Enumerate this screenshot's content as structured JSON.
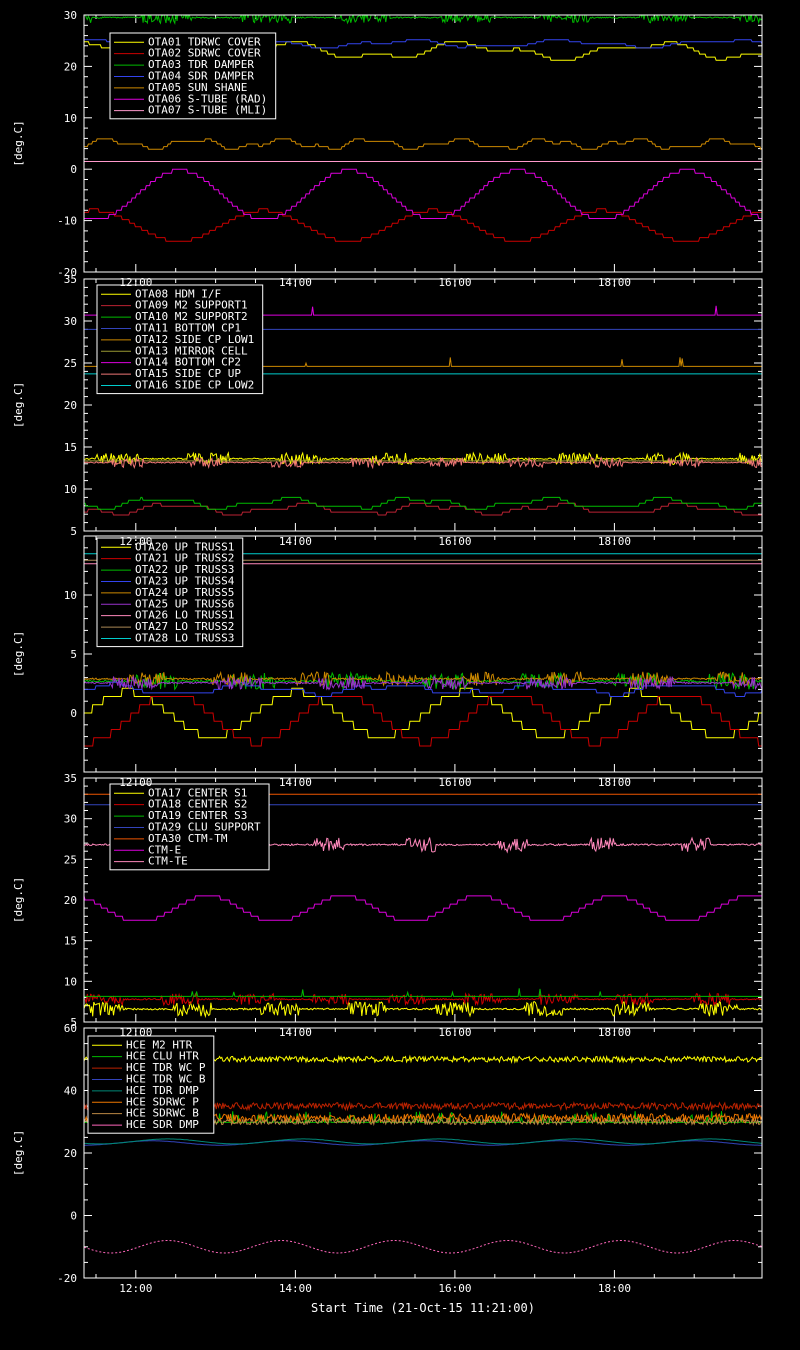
{
  "chart_data": {
    "type": "line",
    "title": "",
    "xlabel": "Start Time (21-Oct-15 11:21:00)",
    "ylabel": "[deg.C]",
    "background": "#000000",
    "foreground": "#ffffff",
    "grid": false,
    "legend_position": "top-left-inside-each-panel",
    "x_range_hours": [
      11.35,
      19.85
    ],
    "x_minor_interval_hours": 0.5,
    "x_ticks": [
      {
        "hour": 12,
        "label": "12:00"
      },
      {
        "hour": 14,
        "label": "14:00"
      },
      {
        "hour": 16,
        "label": "16:00"
      },
      {
        "hour": 18,
        "label": "18:00"
      }
    ],
    "panels": [
      {
        "ylim": [
          -20,
          30
        ],
        "yticks": [
          -20,
          -10,
          0,
          10,
          20,
          30
        ],
        "yminor": 2,
        "series": [
          {
            "label": "OTA01 TDRWC COVER",
            "color": "#ffff00",
            "pattern": "steps",
            "base": 23.0,
            "amp": 1.3,
            "period": 2.3,
            "quant": 0.6,
            "seed": 11
          },
          {
            "label": "OTA02 SDRWC COVER",
            "color": "#cc0000",
            "pattern": "stairsine",
            "base": -11.0,
            "amp": 3.0,
            "period": 2.12,
            "quant": 0.7,
            "tpeak": 13.6,
            "seed": 12
          },
          {
            "label": "OTA03 TDR DAMPER",
            "color": "#00bb00",
            "pattern": "burstnoise",
            "base": 29.5,
            "amp": 1.1,
            "gper": 1.25,
            "gth": 0.0,
            "seed": 13
          },
          {
            "label": "OTA04 SDR DAMPER",
            "color": "#3344ee",
            "pattern": "steps",
            "base": 24.4,
            "amp": 0.6,
            "period": 2.0,
            "quant": 0.4,
            "seed": 14
          },
          {
            "label": "OTA05 SUN SHANE",
            "color": "#cc8800",
            "pattern": "steps",
            "base": 4.9,
            "amp": 0.8,
            "period": 1.1,
            "quant": 0.5,
            "seed": 15
          },
          {
            "label": "OTA06 S-TUBE (RAD)",
            "color": "#dd00dd",
            "pattern": "stairsine",
            "base": -5.0,
            "amp": 4.8,
            "period": 2.12,
            "quant": 0.8,
            "tpeak": 12.55,
            "seed": 16
          },
          {
            "label": "OTA07 S-TUBE (MLI)",
            "color": "#ff99cc",
            "pattern": "flat",
            "base": 1.5,
            "seed": 17
          }
        ]
      },
      {
        "ylim": [
          5,
          35
        ],
        "yticks": [
          5,
          10,
          15,
          20,
          25,
          30,
          35
        ],
        "yminor": 1,
        "series": [
          {
            "label": "OTA08 HDM I/F",
            "color": "#ffff00",
            "pattern": "burstnoise",
            "base": 13.6,
            "amp": 0.7,
            "gper": 1.15,
            "gth": 0.1,
            "seed": 21
          },
          {
            "label": "OTA09 M2 SUPPORT1",
            "color": "#bb2233",
            "pattern": "steps",
            "base": 7.6,
            "amp": 0.5,
            "period": 1.6,
            "quant": 0.35,
            "seed": 22
          },
          {
            "label": "OTA10 M2 SUPPORT2",
            "color": "#00bb00",
            "pattern": "steps",
            "base": 8.3,
            "amp": 0.5,
            "period": 1.6,
            "quant": 0.35,
            "seed": 23
          },
          {
            "label": "OTA11 BOTTOM CP1",
            "color": "#3344bb",
            "pattern": "flat",
            "base": 29.0,
            "seed": 24
          },
          {
            "label": "OTA12 SIDE CP LOW1",
            "color": "#cc8800",
            "pattern": "spikes",
            "base": 24.6,
            "amp": 0.9,
            "p": 0.015,
            "seed": 25
          },
          {
            "label": "OTA13 MIRROR CELL",
            "color": "#999933",
            "pattern": "flat",
            "base": 13.35,
            "seed": 26
          },
          {
            "label": "OTA14 BOTTOM CP2",
            "color": "#dd00dd",
            "pattern": "spikes",
            "base": 30.7,
            "amp": 1.0,
            "p": 0.007,
            "seed": 27
          },
          {
            "label": "OTA15 SIDE CP UP",
            "color": "#ee7777",
            "pattern": "burstnoise",
            "base": 13.15,
            "amp": 0.6,
            "gper": 1.0,
            "gth": 0.25,
            "seed": 28
          },
          {
            "label": "OTA16 SIDE CP LOW2",
            "color": "#00cccc",
            "pattern": "flat",
            "base": 23.7,
            "seed": 29
          }
        ]
      },
      {
        "ylim": [
          -5,
          15
        ],
        "yticks": [
          0,
          5,
          10
        ],
        "yminor": 1,
        "series": [
          {
            "label": "OTA20 UP TRUSS1",
            "color": "#ffff00",
            "pattern": "stairsine",
            "base": -0.1,
            "amp": 1.9,
            "period": 2.12,
            "quant": 0.7,
            "tpeak": 11.9,
            "seed": 31
          },
          {
            "label": "OTA21 UP TRUSS2",
            "color": "#cc0000",
            "pattern": "stairsine",
            "base": -0.4,
            "amp": 2.1,
            "period": 2.12,
            "quant": 0.7,
            "tpeak": 12.45,
            "seed": 32
          },
          {
            "label": "OTA22 UP TRUSS3",
            "color": "#00bb00",
            "pattern": "burstnoise",
            "base": 2.7,
            "amp": 0.7,
            "gper": 1.2,
            "gth": 0.1,
            "seed": 33
          },
          {
            "label": "OTA23 UP TRUSS4",
            "color": "#3344ee",
            "pattern": "steps",
            "base": 2.0,
            "amp": 0.35,
            "period": 1.8,
            "quant": 0.3,
            "seed": 34
          },
          {
            "label": "OTA24 UP TRUSS5",
            "color": "#cc8800",
            "pattern": "burstnoise",
            "base": 2.9,
            "amp": 0.6,
            "gper": 1.05,
            "gth": 0.2,
            "seed": 35
          },
          {
            "label": "OTA25 UP TRUSS6",
            "color": "#9933cc",
            "pattern": "burstnoise",
            "base": 2.55,
            "amp": 0.55,
            "gper": 1.3,
            "gth": 0.15,
            "seed": 36
          },
          {
            "label": "OTA26 LO TRUSS1",
            "color": "#ff88bb",
            "pattern": "flat",
            "base": 12.65,
            "seed": 37
          },
          {
            "label": "OTA27 LO TRUSS2",
            "color": "#aa8855",
            "pattern": "flat",
            "base": 12.95,
            "seed": 38
          },
          {
            "label": "OTA28 LO TRUSS3",
            "color": "#00cccc",
            "pattern": "flat",
            "base": 13.5,
            "seed": 39
          }
        ]
      },
      {
        "ylim": [
          5,
          35
        ],
        "yticks": [
          5,
          10,
          15,
          20,
          25,
          30,
          35
        ],
        "yminor": 1,
        "series": [
          {
            "label": "OTA17 CENTER S1",
            "color": "#ffff00",
            "pattern": "burstnoise",
            "base": 6.6,
            "amp": 0.9,
            "gper": 1.1,
            "gth": 0.2,
            "seed": 41
          },
          {
            "label": "OTA18 CENTER S2",
            "color": "#cc0000",
            "pattern": "burstnoise",
            "base": 7.8,
            "amp": 0.7,
            "gper": 0.95,
            "gth": 0.0,
            "seed": 42
          },
          {
            "label": "OTA19 CENTER S3",
            "color": "#00bb00",
            "pattern": "spikes",
            "base": 8.15,
            "amp": 0.9,
            "p": 0.012,
            "seed": 43
          },
          {
            "label": "OTA29 CLU SUPPORT",
            "color": "#3344bb",
            "pattern": "flat",
            "base": 31.7,
            "seed": 44
          },
          {
            "label": "OTA30 CTM-TM",
            "color": "#ee5500",
            "pattern": "flat",
            "base": 33.0,
            "seed": 45
          },
          {
            "label": "CTM-E",
            "color": "#dd00dd",
            "pattern": "stairsine",
            "base": 18.9,
            "amp": 1.6,
            "period": 1.7,
            "quant": 0.5,
            "tpeak": 12.9,
            "seed": 46
          },
          {
            "label": "CTM-TE",
            "color": "#ff88bb",
            "pattern": "burstnoise",
            "base": 26.8,
            "amp": 0.9,
            "gper": 1.15,
            "gth": 0.55,
            "seed": 47
          }
        ]
      },
      {
        "ylim": [
          -20,
          60
        ],
        "yticks": [
          -20,
          0,
          20,
          40,
          60
        ],
        "yminor": 5,
        "series": [
          {
            "label": "HCE M2 HTR",
            "color": "#ffff00",
            "pattern": "noise",
            "base": 50.0,
            "amp": 0.9,
            "seed": 51
          },
          {
            "label": "HCE CLU HTR",
            "color": "#00bb00",
            "pattern": "spikes",
            "base": 29.8,
            "amp": 3.0,
            "p": 0.08,
            "seed": 52
          },
          {
            "label": "HCE TDR WC P",
            "color": "#bb2200",
            "pattern": "noise",
            "base": 35.0,
            "amp": 1.1,
            "seed": 53
          },
          {
            "label": "HCE TDR WC B",
            "color": "#3344bb",
            "pattern": "sine",
            "base": 23.2,
            "amp": 0.7,
            "period": 1.7,
            "tpeak": 12.2,
            "seed": 54
          },
          {
            "label": "HCE TDR DMP",
            "color": "#008877",
            "pattern": "sine",
            "base": 23.7,
            "amp": 0.8,
            "period": 1.7,
            "tpeak": 12.4,
            "seed": 55
          },
          {
            "label": "HCE SDRWC P",
            "color": "#ee7700",
            "pattern": "noise",
            "base": 31.2,
            "amp": 1.4,
            "seed": 56
          },
          {
            "label": "HCE SDRWC B",
            "color": "#bb8844",
            "pattern": "noise",
            "base": 30.0,
            "amp": 0.9,
            "seed": 57
          },
          {
            "label": "HCE SDR DMP",
            "color": "#ff66bb",
            "pattern": "sine",
            "base": -10.0,
            "amp": 2.0,
            "period": 1.42,
            "tpeak": 12.4,
            "dash": "2 2",
            "seed": 58
          }
        ]
      }
    ]
  }
}
